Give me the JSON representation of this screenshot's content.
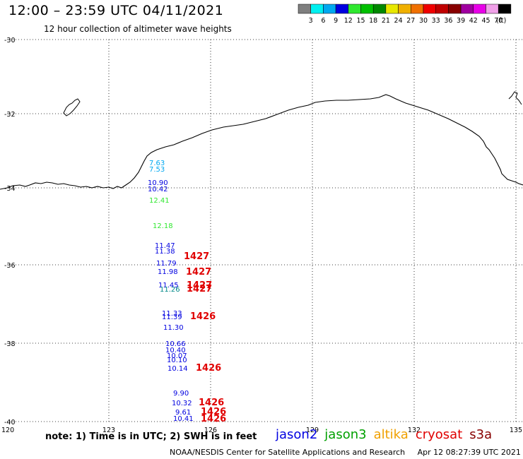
{
  "title": "12:00 – 23:59 UTC 04/11/2021",
  "subtitle": "12 hour collection of altimeter wave heights",
  "color_scale": {
    "unit_label": "(ft)",
    "ticks": [
      "3",
      "6",
      "9",
      "12",
      "15",
      "18",
      "21",
      "24",
      "27",
      "30",
      "33",
      "36",
      "39",
      "42",
      "45",
      "70"
    ],
    "colors": [
      "#7f7f7f",
      "#00f0f0",
      "#00a8f0",
      "#0000e0",
      "#30e830",
      "#00c000",
      "#008800",
      "#e8e800",
      "#f0b000",
      "#f07000",
      "#f00000",
      "#c00000",
      "#880000",
      "#a000a0",
      "#e800e8",
      "#f0a0e8",
      "#000000"
    ]
  },
  "map": {
    "lat_labels": [
      "-30",
      "-32",
      "-34",
      "-36",
      "-38",
      "-40"
    ],
    "lon_labels": [
      "120",
      "123",
      "126",
      "129",
      "132",
      "135"
    ]
  },
  "wave_obs": [
    {
      "text": "7.63",
      "color": "#00a8f0"
    },
    {
      "text": "7.53",
      "color": "#00a8f0"
    },
    {
      "text": "10.90",
      "color": "#0000e0"
    },
    {
      "text": "10.42",
      "color": "#0000e0"
    },
    {
      "text": "12.41",
      "color": "#30e830"
    },
    {
      "text": "12.18",
      "color": "#30e830"
    },
    {
      "text": "11.47",
      "color": "#0000e0"
    },
    {
      "text": "11.38",
      "color": "#0000e0"
    },
    {
      "text": "11.79",
      "color": "#0000e0"
    },
    {
      "text": "11.98",
      "color": "#0000e0"
    },
    {
      "text": "11.45",
      "color": "#0000e0"
    },
    {
      "text": "11.26",
      "color": "#008888"
    },
    {
      "text": "11.33",
      "color": "#0000e0"
    },
    {
      "text": "11.39",
      "color": "#0000e0"
    },
    {
      "text": "11.30",
      "color": "#0000e0"
    },
    {
      "text": "10.66",
      "color": "#0000e0"
    },
    {
      "text": "10.40",
      "color": "#0000e0"
    },
    {
      "text": "10.07",
      "color": "#0000e0"
    },
    {
      "text": "10.10",
      "color": "#0000e0"
    },
    {
      "text": "10.14",
      "color": "#0000e0"
    },
    {
      "text": "9.90",
      "color": "#0000e0"
    },
    {
      "text": "10.32",
      "color": "#0000e0"
    },
    {
      "text": "9.61",
      "color": "#0000e0"
    },
    {
      "text": "10.41",
      "color": "#0000e0"
    },
    {
      "text": "1427",
      "color": "#e00000"
    },
    {
      "text": "1427",
      "color": "#e00000"
    },
    {
      "text": "1427",
      "color": "#e00000"
    },
    {
      "text": "1427",
      "color": "#e00000"
    },
    {
      "text": "1426",
      "color": "#e00000"
    },
    {
      "text": "1426",
      "color": "#e00000"
    },
    {
      "text": "1426",
      "color": "#e00000"
    },
    {
      "text": "1426",
      "color": "#e00000"
    },
    {
      "text": "1426",
      "color": "#e00000"
    }
  ],
  "note": "note:  1) Time is in UTC;  2) SWH is in feet",
  "legend": [
    {
      "name": "jason2",
      "color": "#0000e0"
    },
    {
      "name": "jason3",
      "color": "#00a000"
    },
    {
      "name": "altika",
      "color": "#f0a000"
    },
    {
      "name": "cryosat",
      "color": "#e00000"
    },
    {
      "name": "s3a",
      "color": "#880000"
    }
  ],
  "credit": "NOAA/NESDIS Center for Satellite Applications and Research",
  "timestamp": "Apr 12 08:27:39 UTC 2021"
}
